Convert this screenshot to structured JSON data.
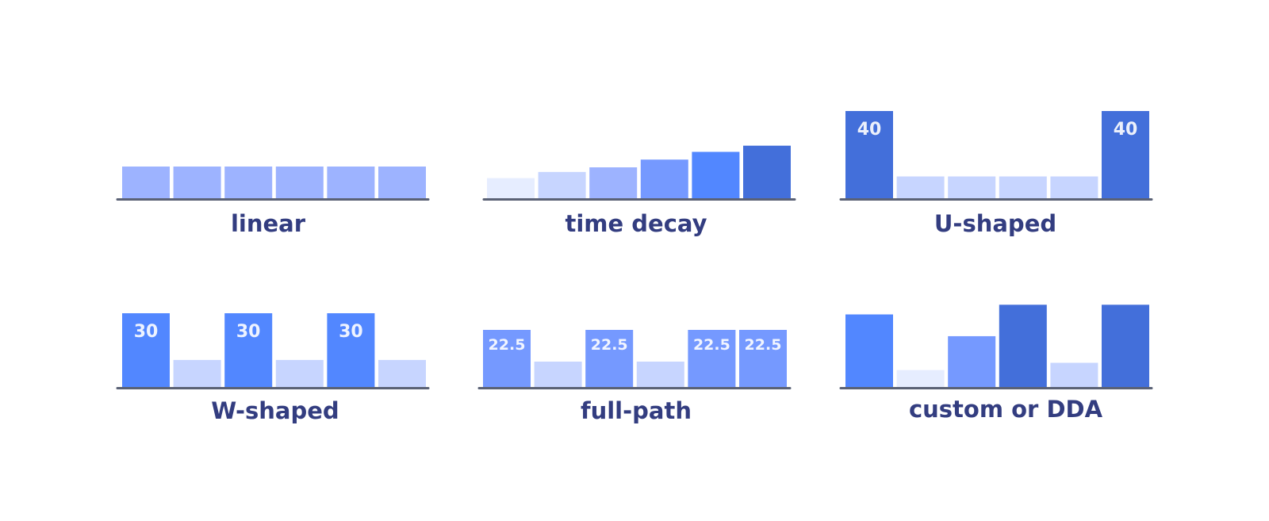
{
  "colors": {
    "axis": "#5a6175",
    "label": "#333d80",
    "shades": [
      "#e6edff",
      "#c7d5ff",
      "#9db3ff",
      "#7599ff",
      "#5287ff",
      "#436fda"
    ]
  },
  "chart_data": [
    {
      "type": "bar",
      "title": "linear",
      "values": [
        1,
        1,
        1,
        1,
        1,
        1
      ],
      "shade": [
        2,
        2,
        2,
        2,
        2,
        2
      ],
      "data_labels": [
        "",
        "",
        "",
        "",
        "",
        ""
      ]
    },
    {
      "type": "bar",
      "title": "time decay",
      "values": [
        0.65,
        0.85,
        1,
        1.25,
        1.5,
        1.7
      ],
      "shade": [
        0,
        1,
        2,
        3,
        4,
        5
      ],
      "data_labels": [
        "",
        "",
        "",
        "",
        "",
        ""
      ]
    },
    {
      "type": "bar",
      "title": "U-shaped",
      "values": [
        40,
        10,
        10,
        10,
        10,
        40
      ],
      "shade": [
        5,
        1,
        1,
        1,
        1,
        5
      ],
      "data_labels": [
        "40",
        "",
        "",
        "",
        "",
        "40"
      ]
    },
    {
      "type": "bar",
      "title": "W-shaped",
      "values": [
        30,
        11,
        30,
        11,
        30,
        11
      ],
      "shade": [
        4,
        1,
        4,
        1,
        4,
        1
      ],
      "data_labels": [
        "30",
        "",
        "30",
        "",
        "30",
        ""
      ]
    },
    {
      "type": "bar",
      "title": "full-path",
      "values": [
        22.5,
        10,
        22.5,
        10,
        22.5,
        22.5
      ],
      "shade": [
        3,
        1,
        3,
        1,
        3,
        3
      ],
      "data_labels": [
        "22.5",
        "",
        "22.5",
        "",
        "22.5",
        "22.5"
      ]
    },
    {
      "type": "bar",
      "title": "custom or DDA",
      "values": [
        30,
        7,
        21,
        34,
        10,
        34
      ],
      "shade": [
        4,
        0,
        3,
        5,
        1,
        5
      ],
      "data_labels": [
        "",
        "",
        "",
        "",
        "",
        ""
      ]
    }
  ]
}
